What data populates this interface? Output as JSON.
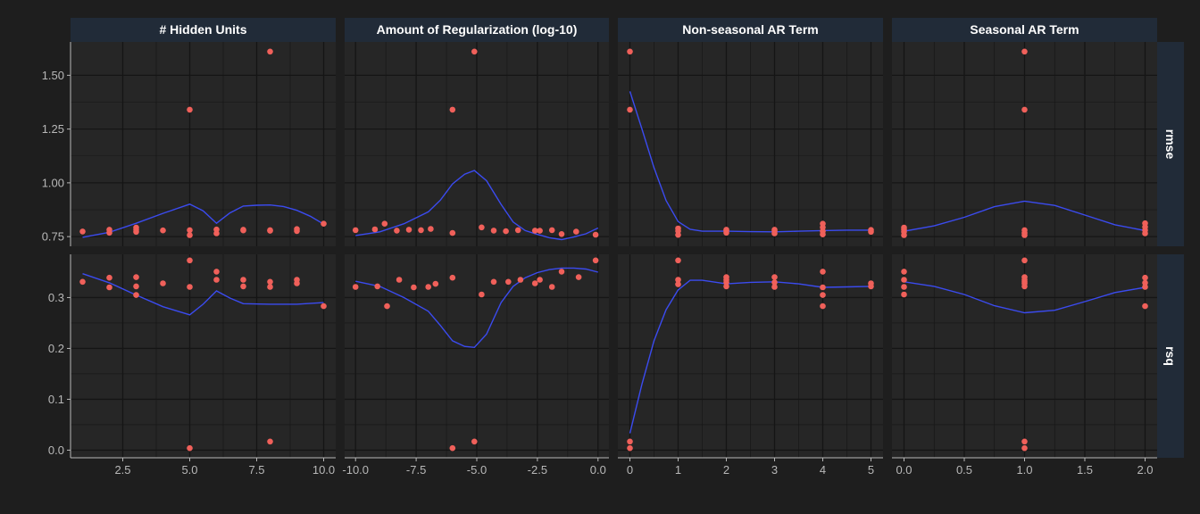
{
  "colors": {
    "background": "#1e1e1e",
    "panel": "#262626",
    "strip": "#212b38",
    "grid": "#151515",
    "axis": "#b8b8b8",
    "points": "#f0605a",
    "smooth": "#3b4bef",
    "strip_text": "#ffffff"
  },
  "chart_data": {
    "type": "scatter",
    "facet_cols": [
      {
        "label": "# Hidden Units",
        "xlim": [
          0.55,
          10.45
        ],
        "xticks": [
          2.5,
          5.0,
          7.5,
          10.0
        ],
        "xtick_labels": [
          "2.5",
          "5.0",
          "7.5",
          "10.0"
        ]
      },
      {
        "label": "Amount of Regularization (log-10)",
        "xlim": [
          -10.45,
          0.45
        ],
        "xticks": [
          -10,
          -7.5,
          -5,
          -2.5,
          0
        ],
        "xtick_labels": [
          "-10.0",
          "-7.5",
          "-5.0",
          "-2.5",
          "0.0"
        ]
      },
      {
        "label": "Non-seasonal AR Term",
        "xlim": [
          -0.25,
          5.25
        ],
        "xticks": [
          0,
          1,
          2,
          3,
          4,
          5
        ],
        "xtick_labels": [
          "0",
          "1",
          "2",
          "3",
          "4",
          "5"
        ]
      },
      {
        "label": "Seasonal AR Term",
        "xlim": [
          -0.1,
          2.1
        ],
        "xticks": [
          0,
          0.5,
          1,
          1.5,
          2
        ],
        "xtick_labels": [
          "0.0",
          "0.5",
          "1.0",
          "1.5",
          "2.0"
        ]
      }
    ],
    "facet_rows": [
      {
        "label": "rmse",
        "ylim": [
          0.705,
          1.655
        ],
        "yticks": [
          0.75,
          1.0,
          1.25,
          1.5
        ],
        "ytick_labels": [
          "0.75",
          "1.00",
          "1.25",
          "1.50"
        ]
      },
      {
        "label": "rsq",
        "ylim": [
          -0.015,
          0.385
        ],
        "yticks": [
          0,
          0.1,
          0.2,
          0.3
        ],
        "ytick_labels": [
          "0.0",
          "0.1",
          "0.2",
          "0.3"
        ]
      }
    ],
    "panels": [
      [
        {
          "points": [
            [
              1,
              0.774
            ],
            [
              2,
              0.768
            ],
            [
              2,
              0.782
            ],
            [
              3,
              0.772
            ],
            [
              3,
              0.782
            ],
            [
              3,
              0.792
            ],
            [
              4,
              0.779
            ],
            [
              5,
              0.757
            ],
            [
              5,
              0.78
            ],
            [
              5,
              1.34
            ],
            [
              6,
              0.765
            ],
            [
              6,
              0.783
            ],
            [
              7,
              0.779
            ],
            [
              7,
              0.782
            ],
            [
              8,
              0.777
            ],
            [
              8,
              0.78
            ],
            [
              8,
              1.61
            ],
            [
              9,
              0.776
            ],
            [
              9,
              0.785
            ],
            [
              10,
              0.81
            ]
          ],
          "smooth": [
            [
              1,
              0.747
            ],
            [
              2,
              0.77
            ],
            [
              3,
              0.812
            ],
            [
              4,
              0.858
            ],
            [
              5,
              0.901
            ],
            [
              5.5,
              0.87
            ],
            [
              6,
              0.812
            ],
            [
              6.5,
              0.86
            ],
            [
              7,
              0.892
            ],
            [
              7.5,
              0.896
            ],
            [
              8,
              0.897
            ],
            [
              8.5,
              0.89
            ],
            [
              9,
              0.872
            ],
            [
              9.5,
              0.845
            ],
            [
              10,
              0.808
            ]
          ]
        },
        {
          "points": [
            [
              -10,
              0.78
            ],
            [
              -9.2,
              0.784
            ],
            [
              -8.8,
              0.81
            ],
            [
              -8.3,
              0.778
            ],
            [
              -7.8,
              0.782
            ],
            [
              -7.3,
              0.78
            ],
            [
              -6.9,
              0.786
            ],
            [
              -6,
              0.767
            ],
            [
              -6,
              1.34
            ],
            [
              -5.1,
              1.61
            ],
            [
              -4.8,
              0.793
            ],
            [
              -4.3,
              0.778
            ],
            [
              -3.8,
              0.775
            ],
            [
              -3.3,
              0.78
            ],
            [
              -2.6,
              0.778
            ],
            [
              -2.4,
              0.777
            ],
            [
              -1.9,
              0.78
            ],
            [
              -1.5,
              0.762
            ],
            [
              -0.9,
              0.773
            ],
            [
              -0.1,
              0.759
            ]
          ],
          "smooth": [
            [
              -10,
              0.755
            ],
            [
              -9,
              0.772
            ],
            [
              -8,
              0.81
            ],
            [
              -7,
              0.865
            ],
            [
              -6.5,
              0.92
            ],
            [
              -6,
              0.995
            ],
            [
              -5.5,
              1.04
            ],
            [
              -5.1,
              1.057
            ],
            [
              -4.6,
              1.01
            ],
            [
              -4,
              0.9
            ],
            [
              -3.5,
              0.818
            ],
            [
              -3,
              0.778
            ],
            [
              -2.5,
              0.76
            ],
            [
              -2,
              0.745
            ],
            [
              -1.5,
              0.736
            ],
            [
              -1,
              0.748
            ],
            [
              -0.5,
              0.763
            ],
            [
              0,
              0.79
            ]
          ]
        },
        {
          "points": [
            [
              0,
              1.61
            ],
            [
              0,
              1.34
            ],
            [
              1,
              0.758
            ],
            [
              1,
              0.776
            ],
            [
              1,
              0.788
            ],
            [
              2,
              0.768
            ],
            [
              2,
              0.778
            ],
            [
              2,
              0.782
            ],
            [
              3,
              0.765
            ],
            [
              3,
              0.776
            ],
            [
              3,
              0.782
            ],
            [
              4,
              0.76
            ],
            [
              4,
              0.775
            ],
            [
              4,
              0.793
            ],
            [
              4,
              0.81
            ],
            [
              5,
              0.772
            ],
            [
              5,
              0.781
            ]
          ],
          "smooth": [
            [
              0,
              1.425
            ],
            [
              0.25,
              1.25
            ],
            [
              0.5,
              1.07
            ],
            [
              0.75,
              0.918
            ],
            [
              1,
              0.82
            ],
            [
              1.25,
              0.784
            ],
            [
              1.5,
              0.775
            ],
            [
              2,
              0.775
            ],
            [
              2.5,
              0.773
            ],
            [
              3,
              0.772
            ],
            [
              3.5,
              0.775
            ],
            [
              4,
              0.778
            ],
            [
              4.5,
              0.78
            ],
            [
              5,
              0.78
            ]
          ]
        },
        {
          "points": [
            [
              0,
              0.757
            ],
            [
              0,
              0.772
            ],
            [
              0,
              0.783
            ],
            [
              0,
              0.792
            ],
            [
              1,
              0.757
            ],
            [
              1,
              0.767
            ],
            [
              1,
              0.78
            ],
            [
              1,
              1.34
            ],
            [
              1,
              1.61
            ],
            [
              2,
              0.765
            ],
            [
              2,
              0.78
            ],
            [
              2,
              0.795
            ],
            [
              2,
              0.812
            ]
          ],
          "smooth": [
            [
              0,
              0.775
            ],
            [
              0.25,
              0.8
            ],
            [
              0.5,
              0.84
            ],
            [
              0.75,
              0.889
            ],
            [
              1,
              0.915
            ],
            [
              1.25,
              0.895
            ],
            [
              1.5,
              0.85
            ],
            [
              1.75,
              0.805
            ],
            [
              2,
              0.778
            ]
          ]
        }
      ],
      [
        {
          "points": [
            [
              1,
              0.331
            ],
            [
              2,
              0.32
            ],
            [
              2,
              0.339
            ],
            [
              3,
              0.305
            ],
            [
              3,
              0.322
            ],
            [
              3,
              0.34
            ],
            [
              4,
              0.328
            ],
            [
              5,
              0.004
            ],
            [
              5,
              0.321
            ],
            [
              5,
              0.373
            ],
            [
              6,
              0.335
            ],
            [
              6,
              0.351
            ],
            [
              7,
              0.322
            ],
            [
              7,
              0.335
            ],
            [
              8,
              0.017
            ],
            [
              8,
              0.321
            ],
            [
              8,
              0.331
            ],
            [
              9,
              0.328
            ],
            [
              9,
              0.335
            ],
            [
              10,
              0.283
            ]
          ],
          "smooth": [
            [
              1,
              0.347
            ],
            [
              2,
              0.329
            ],
            [
              3,
              0.305
            ],
            [
              4,
              0.282
            ],
            [
              5,
              0.266
            ],
            [
              5.5,
              0.287
            ],
            [
              6,
              0.313
            ],
            [
              6.5,
              0.299
            ],
            [
              7,
              0.288
            ],
            [
              8,
              0.287
            ],
            [
              9,
              0.287
            ],
            [
              10,
              0.29
            ]
          ]
        },
        {
          "points": [
            [
              -10,
              0.321
            ],
            [
              -9.1,
              0.322
            ],
            [
              -8.7,
              0.283
            ],
            [
              -8.2,
              0.335
            ],
            [
              -7.6,
              0.32
            ],
            [
              -7,
              0.321
            ],
            [
              -6.7,
              0.327
            ],
            [
              -6,
              0.004
            ],
            [
              -6,
              0.339
            ],
            [
              -5.1,
              0.017
            ],
            [
              -4.8,
              0.306
            ],
            [
              -4.3,
              0.331
            ],
            [
              -3.7,
              0.331
            ],
            [
              -3.2,
              0.335
            ],
            [
              -2.6,
              0.328
            ],
            [
              -2.4,
              0.335
            ],
            [
              -1.9,
              0.321
            ],
            [
              -1.5,
              0.351
            ],
            [
              -0.8,
              0.34
            ],
            [
              -0.1,
              0.373
            ]
          ],
          "smooth": [
            [
              -10,
              0.332
            ],
            [
              -9,
              0.322
            ],
            [
              -8,
              0.3
            ],
            [
              -7,
              0.273
            ],
            [
              -6.5,
              0.245
            ],
            [
              -6,
              0.215
            ],
            [
              -5.5,
              0.204
            ],
            [
              -5.1,
              0.202
            ],
            [
              -4.6,
              0.228
            ],
            [
              -4,
              0.29
            ],
            [
              -3.5,
              0.322
            ],
            [
              -3,
              0.339
            ],
            [
              -2.5,
              0.349
            ],
            [
              -2,
              0.355
            ],
            [
              -1.5,
              0.358
            ],
            [
              -1,
              0.358
            ],
            [
              -0.5,
              0.356
            ],
            [
              0,
              0.35
            ]
          ]
        },
        {
          "points": [
            [
              0,
              0.004
            ],
            [
              0,
              0.017
            ],
            [
              1,
              0.326
            ],
            [
              1,
              0.335
            ],
            [
              1,
              0.373
            ],
            [
              2,
              0.322
            ],
            [
              2,
              0.33
            ],
            [
              2,
              0.335
            ],
            [
              2,
              0.34
            ],
            [
              3,
              0.321
            ],
            [
              3,
              0.33
            ],
            [
              3,
              0.34
            ],
            [
              4,
              0.283
            ],
            [
              4,
              0.305
            ],
            [
              4,
              0.32
            ],
            [
              4,
              0.351
            ],
            [
              5,
              0.322
            ],
            [
              5,
              0.328
            ]
          ],
          "smooth": [
            [
              0,
              0.033
            ],
            [
              0.25,
              0.13
            ],
            [
              0.5,
              0.215
            ],
            [
              0.75,
              0.276
            ],
            [
              1,
              0.315
            ],
            [
              1.25,
              0.334
            ],
            [
              1.5,
              0.334
            ],
            [
              2,
              0.327
            ],
            [
              2.5,
              0.33
            ],
            [
              3,
              0.331
            ],
            [
              3.5,
              0.327
            ],
            [
              4,
              0.32
            ],
            [
              4.5,
              0.321
            ],
            [
              5,
              0.322
            ]
          ]
        },
        {
          "points": [
            [
              0,
              0.306
            ],
            [
              0,
              0.321
            ],
            [
              0,
              0.335
            ],
            [
              0,
              0.351
            ],
            [
              1,
              0.004
            ],
            [
              1,
              0.017
            ],
            [
              1,
              0.322
            ],
            [
              1,
              0.328
            ],
            [
              1,
              0.331
            ],
            [
              1,
              0.335
            ],
            [
              1,
              0.34
            ],
            [
              1,
              0.373
            ],
            [
              2,
              0.283
            ],
            [
              2,
              0.321
            ],
            [
              2,
              0.329
            ],
            [
              2,
              0.339
            ]
          ],
          "smooth": [
            [
              0,
              0.331
            ],
            [
              0.25,
              0.322
            ],
            [
              0.5,
              0.306
            ],
            [
              0.75,
              0.284
            ],
            [
              1,
              0.27
            ],
            [
              1.25,
              0.275
            ],
            [
              1.5,
              0.292
            ],
            [
              1.75,
              0.31
            ],
            [
              2,
              0.32
            ]
          ]
        }
      ]
    ]
  }
}
